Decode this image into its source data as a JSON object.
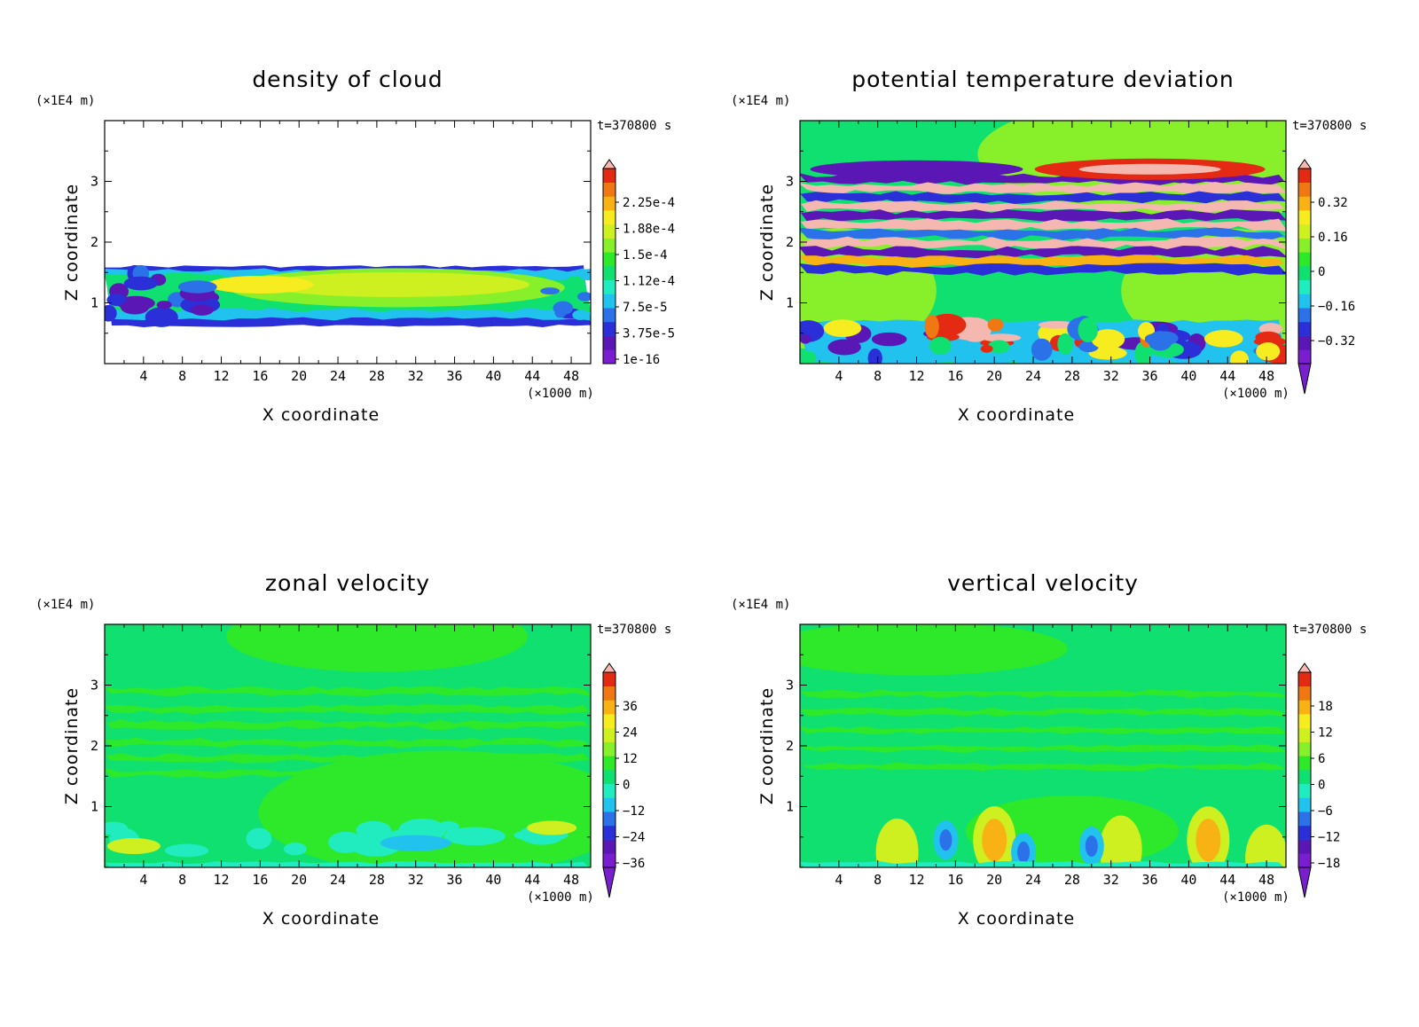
{
  "colorbar_colors": [
    "#7a1fd0",
    "#5a17b5",
    "#2a2fd8",
    "#2b72e8",
    "#22c2ee",
    "#20ecc0",
    "#10e070",
    "#2ee82a",
    "#88f02a",
    "#cef020",
    "#f7ec1f",
    "#f8b214",
    "#f07812",
    "#e42a12",
    "#f4b8b0"
  ],
  "chart_data": [
    {
      "type": "heatmap",
      "title": "density of cloud",
      "xlabel": "X coordinate",
      "ylabel": "Z coordinate",
      "x_unit": "(×1000 m)",
      "y_unit": "(×1E4 m)",
      "time_label": "t=370800 s",
      "xlim": [
        0,
        50
      ],
      "ylim": [
        0,
        4
      ],
      "x_ticks": [
        4,
        8,
        12,
        16,
        20,
        24,
        28,
        32,
        36,
        40,
        44,
        48
      ],
      "y_ticks": [
        1,
        2,
        3
      ],
      "colorbar_labels": [
        "2.25e-4",
        "1.88e-4",
        "1.5e-4",
        "1.12e-4",
        "7.5e-5",
        "3.75e-5",
        "1e-16"
      ],
      "colorbar_triangle_bottom": false
    },
    {
      "type": "heatmap",
      "title": "potential temperature deviation",
      "xlabel": "X coordinate",
      "ylabel": "Z coordinate",
      "x_unit": "(×1000 m)",
      "y_unit": "(×1E4 m)",
      "time_label": "t=370800 s",
      "xlim": [
        0,
        50
      ],
      "ylim": [
        0,
        4
      ],
      "x_ticks": [
        4,
        8,
        12,
        16,
        20,
        24,
        28,
        32,
        36,
        40,
        44,
        48
      ],
      "y_ticks": [
        1,
        2,
        3
      ],
      "colorbar_labels": [
        "0.32",
        "0.16",
        "0",
        "−0.16",
        "−0.32"
      ],
      "colorbar_triangle_bottom": true
    },
    {
      "type": "heatmap",
      "title": "zonal velocity",
      "xlabel": "X coordinate",
      "ylabel": "Z coordinate",
      "x_unit": "(×1000 m)",
      "y_unit": "(×1E4 m)",
      "time_label": "t=370800 s",
      "xlim": [
        0,
        50
      ],
      "ylim": [
        0,
        4
      ],
      "x_ticks": [
        4,
        8,
        12,
        16,
        20,
        24,
        28,
        32,
        36,
        40,
        44,
        48
      ],
      "y_ticks": [
        1,
        2,
        3
      ],
      "colorbar_labels": [
        "36",
        "24",
        "12",
        "0",
        "−12",
        "−24",
        "−36"
      ],
      "colorbar_triangle_bottom": true
    },
    {
      "type": "heatmap",
      "title": "vertical velocity",
      "xlabel": "X coordinate",
      "ylabel": "Z coordinate",
      "x_unit": "(×1000 m)",
      "y_unit": "(×1E4 m)",
      "time_label": "t=370800 s",
      "xlim": [
        0,
        50
      ],
      "ylim": [
        0,
        4
      ],
      "x_ticks": [
        4,
        8,
        12,
        16,
        20,
        24,
        28,
        32,
        36,
        40,
        44,
        48
      ],
      "y_ticks": [
        1,
        2,
        3
      ],
      "colorbar_labels": [
        "18",
        "12",
        "6",
        "0",
        "−6",
        "−12",
        "−18"
      ],
      "colorbar_triangle_bottom": true
    }
  ]
}
